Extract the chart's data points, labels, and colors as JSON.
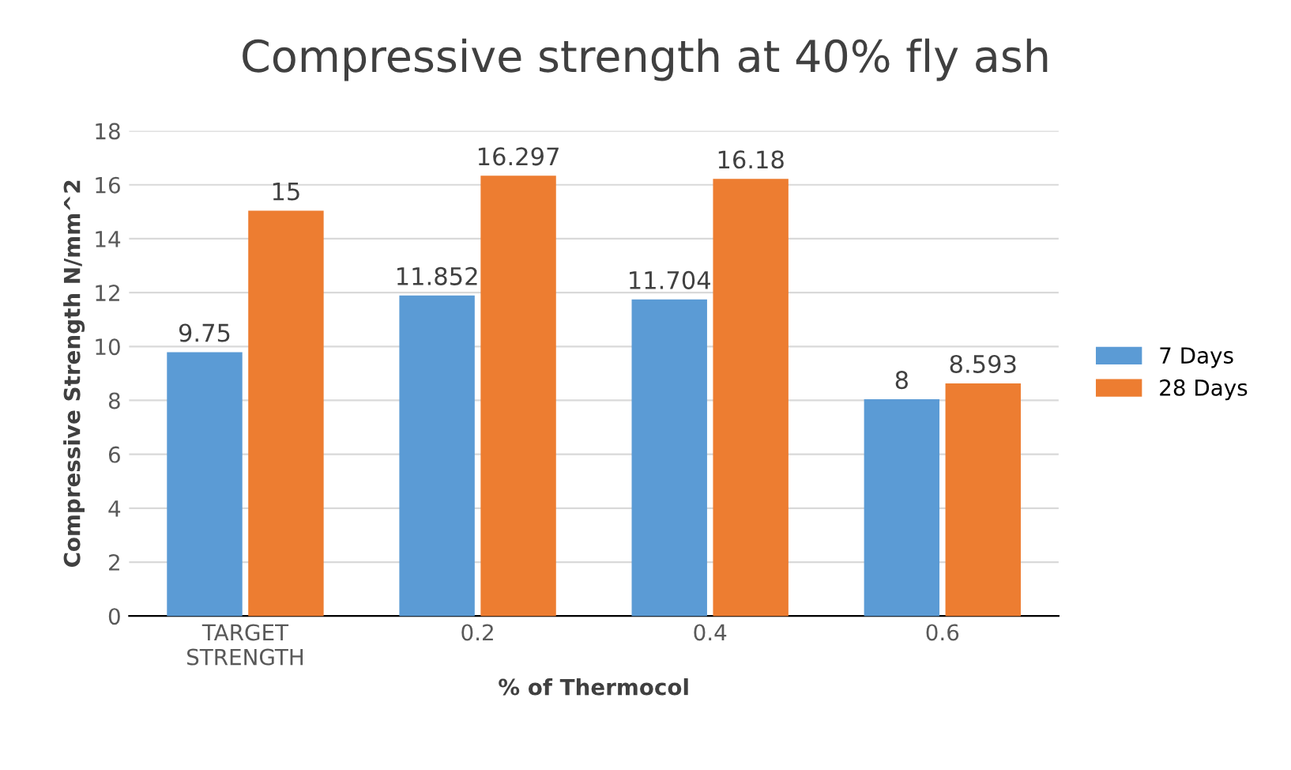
{
  "chart_data": {
    "type": "bar",
    "title": "Compressive strength at 40% fly ash",
    "xlabel": "% of Thermocol",
    "ylabel": "Compressive Strength N/mm^2",
    "categories": [
      "TARGET\nSTRENGTH",
      "0.2",
      "0.4",
      "0.6"
    ],
    "series": [
      {
        "name": "7 Days",
        "color": "#5b9bd5",
        "values": [
          9.75,
          11.852,
          11.704,
          8
        ]
      },
      {
        "name": "28 Days",
        "color": "#ed7d31",
        "values": [
          15,
          16.297,
          16.18,
          8.593
        ]
      }
    ],
    "ylim": [
      0,
      18
    ],
    "yticks": [
      0,
      2,
      4,
      6,
      8,
      10,
      12,
      14,
      16,
      18
    ],
    "grid": "y",
    "legend": "right",
    "data_labels": true
  }
}
